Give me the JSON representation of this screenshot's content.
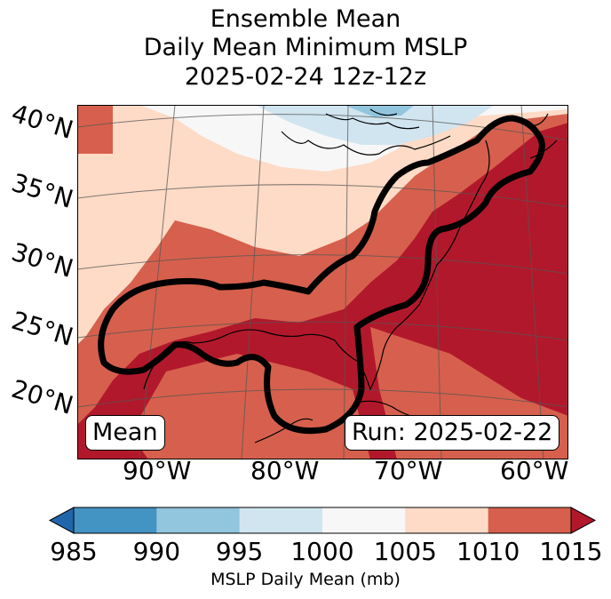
{
  "title": {
    "line1": "Ensemble Mean",
    "line2": "Daily Mean Minimum MSLP",
    "line3": "2025-02-24 12z-12z"
  },
  "map": {
    "lat_labels": [
      "40°N",
      "35°N",
      "30°N",
      "25°N",
      "20°N"
    ],
    "lon_labels": [
      "90°W",
      "80°W",
      "70°W",
      "60°W"
    ],
    "badge_left": "Mean",
    "badge_right": "Run: 2025-02-22",
    "contour_color": "#000000"
  },
  "colorbar": {
    "label": "MSLP Daily Mean (mb)",
    "ticks": [
      "985",
      "990",
      "995",
      "1000",
      "1005",
      "1010",
      "1015"
    ],
    "colors": [
      "#2166ac",
      "#4393c3",
      "#92c5de",
      "#d1e5f0",
      "#f7f7f7",
      "#fddbc7",
      "#d6604d",
      "#b2182b"
    ],
    "extend": "both"
  }
}
